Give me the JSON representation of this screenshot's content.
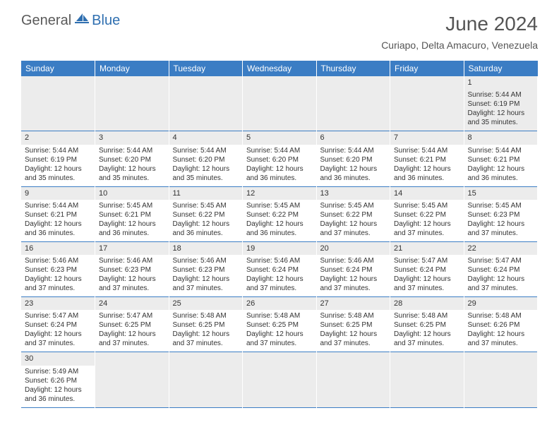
{
  "logo": {
    "general": "General",
    "blue": "Blue"
  },
  "title": "June 2024",
  "location": "Curiapo, Delta Amacuro, Venezuela",
  "colors": {
    "header_bg": "#3b7dc4",
    "header_text": "#ffffff",
    "daynum_bg": "#ececec",
    "text": "#333333",
    "logo_gray": "#5a5a5a",
    "logo_blue": "#2f6fb0",
    "row_divider": "#3b7dc4"
  },
  "typography": {
    "title_fontsize": 28,
    "subtitle_fontsize": 14,
    "header_fontsize": 12,
    "cell_fontsize": 10,
    "daynum_fontsize": 11
  },
  "weekdays": [
    "Sunday",
    "Monday",
    "Tuesday",
    "Wednesday",
    "Thursday",
    "Friday",
    "Saturday"
  ],
  "weeks": [
    [
      null,
      null,
      null,
      null,
      null,
      null,
      {
        "day": "1",
        "sunrise": "Sunrise: 5:44 AM",
        "sunset": "Sunset: 6:19 PM",
        "day1": "Daylight: 12 hours",
        "day2": "and 35 minutes."
      }
    ],
    [
      {
        "day": "2",
        "sunrise": "Sunrise: 5:44 AM",
        "sunset": "Sunset: 6:19 PM",
        "day1": "Daylight: 12 hours",
        "day2": "and 35 minutes."
      },
      {
        "day": "3",
        "sunrise": "Sunrise: 5:44 AM",
        "sunset": "Sunset: 6:20 PM",
        "day1": "Daylight: 12 hours",
        "day2": "and 35 minutes."
      },
      {
        "day": "4",
        "sunrise": "Sunrise: 5:44 AM",
        "sunset": "Sunset: 6:20 PM",
        "day1": "Daylight: 12 hours",
        "day2": "and 35 minutes."
      },
      {
        "day": "5",
        "sunrise": "Sunrise: 5:44 AM",
        "sunset": "Sunset: 6:20 PM",
        "day1": "Daylight: 12 hours",
        "day2": "and 36 minutes."
      },
      {
        "day": "6",
        "sunrise": "Sunrise: 5:44 AM",
        "sunset": "Sunset: 6:20 PM",
        "day1": "Daylight: 12 hours",
        "day2": "and 36 minutes."
      },
      {
        "day": "7",
        "sunrise": "Sunrise: 5:44 AM",
        "sunset": "Sunset: 6:21 PM",
        "day1": "Daylight: 12 hours",
        "day2": "and 36 minutes."
      },
      {
        "day": "8",
        "sunrise": "Sunrise: 5:44 AM",
        "sunset": "Sunset: 6:21 PM",
        "day1": "Daylight: 12 hours",
        "day2": "and 36 minutes."
      }
    ],
    [
      {
        "day": "9",
        "sunrise": "Sunrise: 5:44 AM",
        "sunset": "Sunset: 6:21 PM",
        "day1": "Daylight: 12 hours",
        "day2": "and 36 minutes."
      },
      {
        "day": "10",
        "sunrise": "Sunrise: 5:45 AM",
        "sunset": "Sunset: 6:21 PM",
        "day1": "Daylight: 12 hours",
        "day2": "and 36 minutes."
      },
      {
        "day": "11",
        "sunrise": "Sunrise: 5:45 AM",
        "sunset": "Sunset: 6:22 PM",
        "day1": "Daylight: 12 hours",
        "day2": "and 36 minutes."
      },
      {
        "day": "12",
        "sunrise": "Sunrise: 5:45 AM",
        "sunset": "Sunset: 6:22 PM",
        "day1": "Daylight: 12 hours",
        "day2": "and 36 minutes."
      },
      {
        "day": "13",
        "sunrise": "Sunrise: 5:45 AM",
        "sunset": "Sunset: 6:22 PM",
        "day1": "Daylight: 12 hours",
        "day2": "and 37 minutes."
      },
      {
        "day": "14",
        "sunrise": "Sunrise: 5:45 AM",
        "sunset": "Sunset: 6:22 PM",
        "day1": "Daylight: 12 hours",
        "day2": "and 37 minutes."
      },
      {
        "day": "15",
        "sunrise": "Sunrise: 5:45 AM",
        "sunset": "Sunset: 6:23 PM",
        "day1": "Daylight: 12 hours",
        "day2": "and 37 minutes."
      }
    ],
    [
      {
        "day": "16",
        "sunrise": "Sunrise: 5:46 AM",
        "sunset": "Sunset: 6:23 PM",
        "day1": "Daylight: 12 hours",
        "day2": "and 37 minutes."
      },
      {
        "day": "17",
        "sunrise": "Sunrise: 5:46 AM",
        "sunset": "Sunset: 6:23 PM",
        "day1": "Daylight: 12 hours",
        "day2": "and 37 minutes."
      },
      {
        "day": "18",
        "sunrise": "Sunrise: 5:46 AM",
        "sunset": "Sunset: 6:23 PM",
        "day1": "Daylight: 12 hours",
        "day2": "and 37 minutes."
      },
      {
        "day": "19",
        "sunrise": "Sunrise: 5:46 AM",
        "sunset": "Sunset: 6:24 PM",
        "day1": "Daylight: 12 hours",
        "day2": "and 37 minutes."
      },
      {
        "day": "20",
        "sunrise": "Sunrise: 5:46 AM",
        "sunset": "Sunset: 6:24 PM",
        "day1": "Daylight: 12 hours",
        "day2": "and 37 minutes."
      },
      {
        "day": "21",
        "sunrise": "Sunrise: 5:47 AM",
        "sunset": "Sunset: 6:24 PM",
        "day1": "Daylight: 12 hours",
        "day2": "and 37 minutes."
      },
      {
        "day": "22",
        "sunrise": "Sunrise: 5:47 AM",
        "sunset": "Sunset: 6:24 PM",
        "day1": "Daylight: 12 hours",
        "day2": "and 37 minutes."
      }
    ],
    [
      {
        "day": "23",
        "sunrise": "Sunrise: 5:47 AM",
        "sunset": "Sunset: 6:24 PM",
        "day1": "Daylight: 12 hours",
        "day2": "and 37 minutes."
      },
      {
        "day": "24",
        "sunrise": "Sunrise: 5:47 AM",
        "sunset": "Sunset: 6:25 PM",
        "day1": "Daylight: 12 hours",
        "day2": "and 37 minutes."
      },
      {
        "day": "25",
        "sunrise": "Sunrise: 5:48 AM",
        "sunset": "Sunset: 6:25 PM",
        "day1": "Daylight: 12 hours",
        "day2": "and 37 minutes."
      },
      {
        "day": "26",
        "sunrise": "Sunrise: 5:48 AM",
        "sunset": "Sunset: 6:25 PM",
        "day1": "Daylight: 12 hours",
        "day2": "and 37 minutes."
      },
      {
        "day": "27",
        "sunrise": "Sunrise: 5:48 AM",
        "sunset": "Sunset: 6:25 PM",
        "day1": "Daylight: 12 hours",
        "day2": "and 37 minutes."
      },
      {
        "day": "28",
        "sunrise": "Sunrise: 5:48 AM",
        "sunset": "Sunset: 6:25 PM",
        "day1": "Daylight: 12 hours",
        "day2": "and 37 minutes."
      },
      {
        "day": "29",
        "sunrise": "Sunrise: 5:48 AM",
        "sunset": "Sunset: 6:26 PM",
        "day1": "Daylight: 12 hours",
        "day2": "and 37 minutes."
      }
    ],
    [
      {
        "day": "30",
        "sunrise": "Sunrise: 5:49 AM",
        "sunset": "Sunset: 6:26 PM",
        "day1": "Daylight: 12 hours",
        "day2": "and 36 minutes."
      },
      null,
      null,
      null,
      null,
      null,
      null
    ]
  ]
}
